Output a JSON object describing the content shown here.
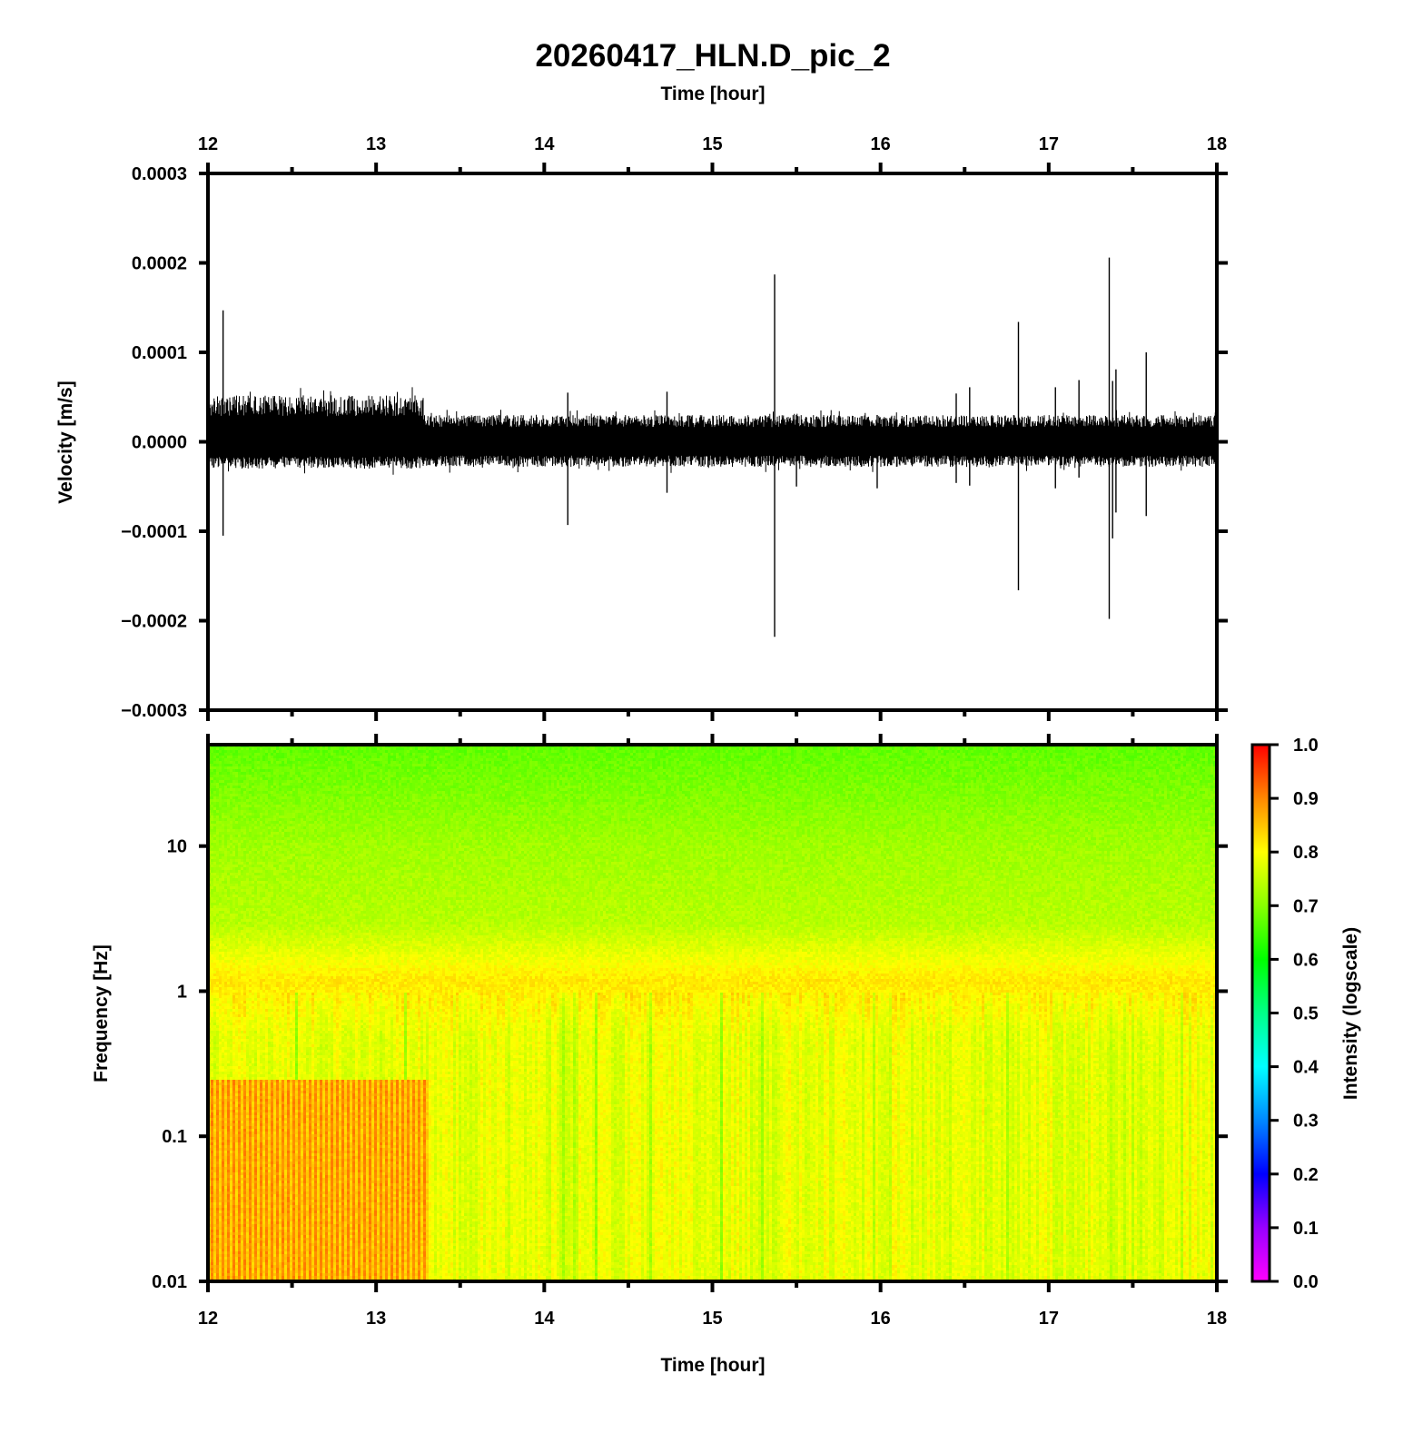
{
  "title": "20260417_HLN.D_pic_2",
  "chart_data": [
    {
      "type": "line",
      "panel": "waveform",
      "xlabel": "Time [hour]",
      "ylabel": "Velocity [m/s]",
      "xlim": [
        12,
        18
      ],
      "ylim": [
        -0.0003,
        0.0003
      ],
      "x_ticks": [
        12,
        13,
        14,
        15,
        16,
        17,
        18
      ],
      "x_tick_labels": [
        "12",
        "13",
        "14",
        "15",
        "16",
        "17",
        "18"
      ],
      "y_ticks": [
        0.0003,
        0.0002,
        0.0001,
        0,
        -0.0001,
        -0.0002,
        -0.0003
      ],
      "y_tick_labels": [
        "0.0003",
        "0.0002",
        "0.0001",
        "0.0000",
        "−0.0001",
        "−0.0002",
        "−0.0003"
      ],
      "noise_envelope": [
        {
          "from": 12.0,
          "to": 13.28,
          "upper": 5.2e-05,
          "lower": -3e-05
        },
        {
          "from": 13.28,
          "to": 18.0,
          "upper": 3e-05,
          "lower": -2.8e-05
        }
      ],
      "spikes": [
        {
          "x": 12.09,
          "max": 0.000147,
          "min": -0.000105
        },
        {
          "x": 14.14,
          "max": 5.5e-05,
          "min": -9.3e-05
        },
        {
          "x": 14.73,
          "max": 5.6e-05,
          "min": -5.7e-05
        },
        {
          "x": 15.37,
          "max": 0.000187,
          "min": -0.000218
        },
        {
          "x": 15.5,
          "max": 3e-05,
          "min": -5e-05
        },
        {
          "x": 15.98,
          "max": 3e-05,
          "min": -5.2e-05
        },
        {
          "x": 16.45,
          "max": 5.4e-05,
          "min": -4.6e-05
        },
        {
          "x": 16.53,
          "max": 6.1e-05,
          "min": -4.9e-05
        },
        {
          "x": 16.82,
          "max": 0.000134,
          "min": -0.000166
        },
        {
          "x": 17.04,
          "max": 6.1e-05,
          "min": -5.2e-05
        },
        {
          "x": 17.18,
          "max": 6.9e-05,
          "min": -4e-05
        },
        {
          "x": 17.36,
          "max": 0.000206,
          "min": -0.000198
        },
        {
          "x": 17.38,
          "max": 6.8e-05,
          "min": -0.000108
        },
        {
          "x": 17.4,
          "max": 8.1e-05,
          "min": -7.9e-05
        },
        {
          "x": 17.58,
          "max": 0.0001,
          "min": -8.3e-05
        }
      ],
      "colors": {
        "trace": "#000000"
      }
    },
    {
      "type": "heatmap",
      "panel": "spectrogram",
      "xlabel": "Time [hour]",
      "ylabel": "Frequency [Hz]",
      "xlim": [
        12,
        18
      ],
      "ylim": [
        0.01,
        50
      ],
      "y_scale": "log",
      "x_ticks": [
        12,
        13,
        14,
        15,
        16,
        17,
        18
      ],
      "x_tick_labels": [
        "12",
        "13",
        "14",
        "15",
        "16",
        "17",
        "18"
      ],
      "y_ticks": [
        10,
        1,
        0.1,
        0.01
      ],
      "y_tick_labels": [
        "10",
        "1",
        "0.1",
        "0.01"
      ],
      "intensity_profile": [
        {
          "freq": 50,
          "intensity": 0.67
        },
        {
          "freq": 10,
          "intensity": 0.72
        },
        {
          "freq": 3,
          "intensity": 0.74
        },
        {
          "freq": 1.2,
          "intensity": 0.82
        },
        {
          "freq": 0.5,
          "intensity": 0.78
        },
        {
          "freq": 0.1,
          "intensity": 0.78
        },
        {
          "freq": 0.01,
          "intensity": 0.78
        }
      ],
      "high_energy_block": {
        "from": 12.0,
        "to": 13.3,
        "freq_max": 0.25,
        "intensity": 0.86
      },
      "colorbar": {
        "label": "Intensity (logscale)",
        "range": [
          0.0,
          1.0
        ],
        "ticks": [
          1.0,
          0.9,
          0.8,
          0.7,
          0.6,
          0.5,
          0.4,
          0.3,
          0.2,
          0.1,
          0.0
        ],
        "tick_labels": [
          "1.0",
          "0.9",
          "0.8",
          "0.7",
          "0.6",
          "0.5",
          "0.4",
          "0.3",
          "0.2",
          "0.1",
          "0.0"
        ],
        "colors": [
          "#ff00ff",
          "#9900ff",
          "#0000ff",
          "#0088ff",
          "#00ffff",
          "#00ff88",
          "#00ff00",
          "#88ff00",
          "#ffff00",
          "#ff8800",
          "#ff0000"
        ]
      }
    }
  ]
}
